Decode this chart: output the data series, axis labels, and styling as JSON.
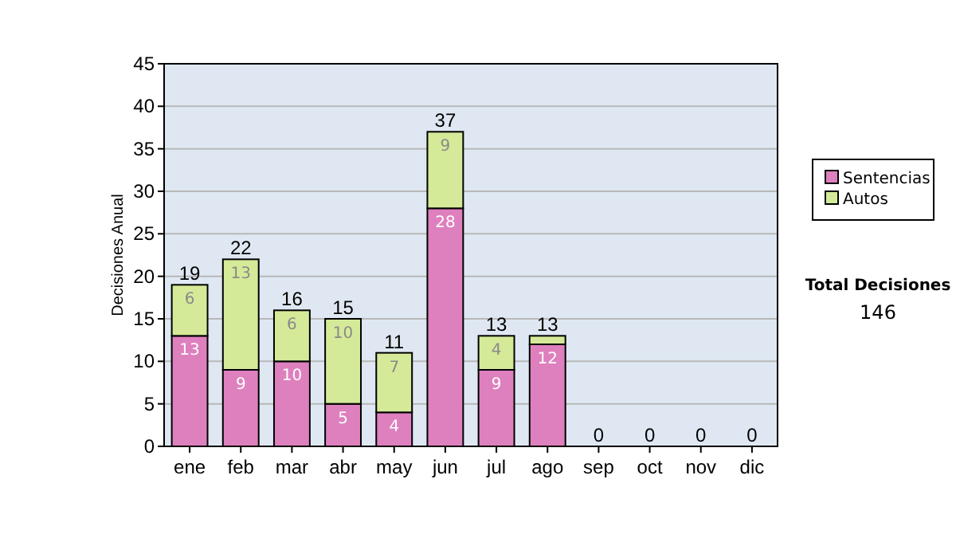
{
  "chart_data": {
    "type": "bar",
    "stacked": true,
    "ylabel": "Decisiones Anual",
    "categories": [
      "ene",
      "feb",
      "mar",
      "abr",
      "may",
      "jun",
      "jul",
      "ago",
      "sep",
      "oct",
      "nov",
      "dic"
    ],
    "series": [
      {
        "name": "Sentencias",
        "color": "#de80be",
        "values": [
          13,
          9,
          10,
          5,
          4,
          28,
          9,
          12,
          0,
          0,
          0,
          0
        ],
        "value_labels": [
          "13",
          "9",
          "10",
          "5",
          "4",
          "28",
          "9",
          "12",
          null,
          null,
          null,
          null
        ]
      },
      {
        "name": "Autos",
        "color": "#d4ea99",
        "values": [
          6,
          13,
          6,
          10,
          7,
          9,
          4,
          1,
          0,
          0,
          0,
          0
        ],
        "value_labels": [
          "6",
          "13",
          "6",
          "10",
          "7",
          "9",
          "4",
          null,
          null,
          null,
          null,
          null
        ]
      }
    ],
    "totals": [
      "19",
      "22",
      "16",
      "15",
      "11",
      "37",
      "13",
      "13",
      "0",
      "0",
      "0",
      "0"
    ],
    "ylim": [
      0,
      45
    ],
    "yticks": [
      0,
      5,
      10,
      15,
      20,
      25,
      30,
      35,
      40,
      45
    ],
    "grid": "y",
    "legend": "right",
    "annotations": [
      "Total Decisiones",
      "146"
    ]
  }
}
